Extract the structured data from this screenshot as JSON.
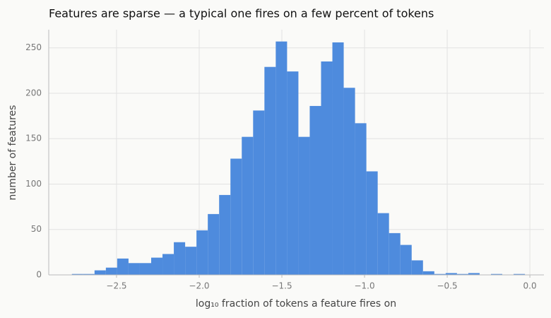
{
  "chart_data": {
    "type": "histogram",
    "title": "Features are sparse — a typical one fires on a few percent of tokens",
    "xlabel": "log₁₀ fraction of tokens a feature fires on",
    "ylabel": "number of features",
    "color": "#4a89dc",
    "bins": [
      -2.77,
      -2.7015,
      -2.633,
      -2.5645,
      -2.496,
      -2.4275,
      -2.359,
      -2.2905,
      -2.222,
      -2.1535,
      -2.085,
      -2.0165,
      -1.948,
      -1.8795,
      -1.811,
      -1.7425,
      -1.674,
      -1.6055,
      -1.537,
      -1.4685,
      -1.4,
      -1.3315,
      -1.263,
      -1.1945,
      -1.126,
      -1.0575,
      -0.989,
      -0.9205,
      -0.852,
      -0.7835,
      -0.715,
      -0.6465,
      -0.578,
      -0.5095,
      -0.441,
      -0.3725,
      -0.304,
      -0.2355,
      -0.167,
      -0.0985,
      -0.03
    ],
    "values": [
      1,
      1,
      5,
      8,
      18,
      13,
      13,
      19,
      23,
      36,
      31,
      49,
      67,
      88,
      128,
      152,
      181,
      229,
      257,
      224,
      152,
      186,
      235,
      256,
      206,
      167,
      114,
      68,
      46,
      33,
      16,
      4,
      1,
      2,
      1,
      2,
      0,
      1,
      0,
      1
    ],
    "xlim": [
      -2.91,
      0.085
    ],
    "ylim": [
      0,
      270
    ],
    "xticks": [
      {
        "value": -2.5,
        "label": "−2.5"
      },
      {
        "value": -2.0,
        "label": "−2.0"
      },
      {
        "value": -1.5,
        "label": "−1.5"
      },
      {
        "value": -1.0,
        "label": "−1.0"
      },
      {
        "value": -0.5,
        "label": "−0.5"
      },
      {
        "value": 0,
        "label": "0.0"
      }
    ],
    "yticks": [
      0,
      50,
      100,
      150,
      200,
      250
    ],
    "grid": true
  }
}
